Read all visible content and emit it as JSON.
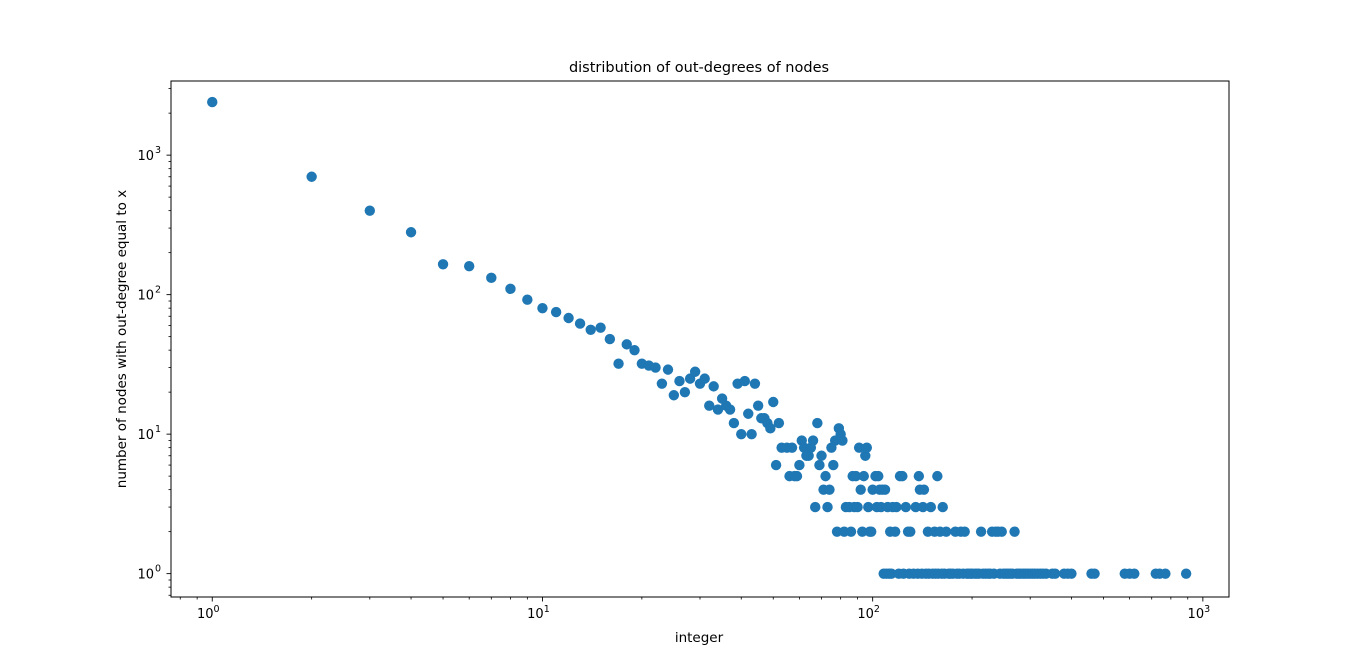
{
  "chart_data": {
    "type": "scatter",
    "title": "distribution of out-degrees of nodes",
    "xlabel": "integer",
    "ylabel": "number of nodes with out-degree equal to x",
    "xscale": "log",
    "yscale": "log",
    "xlim": [
      0.75,
      1200
    ],
    "ylim": [
      0.68,
      3400
    ],
    "grid": false,
    "marker_color": "#1f77b4",
    "x_ticks": [
      {
        "value": 1,
        "base": "10",
        "exp": "0"
      },
      {
        "value": 10,
        "base": "10",
        "exp": "1"
      },
      {
        "value": 100,
        "base": "10",
        "exp": "2"
      },
      {
        "value": 1000,
        "base": "10",
        "exp": "3"
      }
    ],
    "y_ticks": [
      {
        "value": 1,
        "base": "10",
        "exp": "0"
      },
      {
        "value": 10,
        "base": "10",
        "exp": "1"
      },
      {
        "value": 100,
        "base": "10",
        "exp": "2"
      },
      {
        "value": 1000,
        "base": "10",
        "exp": "3"
      }
    ],
    "points": [
      [
        1,
        2400
      ],
      [
        2,
        700
      ],
      [
        3,
        400
      ],
      [
        4,
        280
      ],
      [
        5,
        165
      ],
      [
        6,
        160
      ],
      [
        7,
        132
      ],
      [
        8,
        110
      ],
      [
        9,
        92
      ],
      [
        10,
        80
      ],
      [
        11,
        75
      ],
      [
        12,
        68
      ],
      [
        13,
        62
      ],
      [
        14,
        56
      ],
      [
        15,
        58
      ],
      [
        16,
        48
      ],
      [
        17,
        32
      ],
      [
        18,
        44
      ],
      [
        19,
        40
      ],
      [
        20,
        32
      ],
      [
        21,
        31
      ],
      [
        22,
        30
      ],
      [
        23,
        23
      ],
      [
        24,
        29
      ],
      [
        25,
        19
      ],
      [
        26,
        24
      ],
      [
        27,
        20
      ],
      [
        28,
        25
      ],
      [
        29,
        28
      ],
      [
        30,
        23
      ],
      [
        31,
        25
      ],
      [
        32,
        16
      ],
      [
        33,
        22
      ],
      [
        34,
        15
      ],
      [
        35,
        18
      ],
      [
        36,
        16
      ],
      [
        37,
        15
      ],
      [
        38,
        12
      ],
      [
        39,
        23
      ],
      [
        40,
        10
      ],
      [
        41,
        24
      ],
      [
        42,
        14
      ],
      [
        43,
        10
      ],
      [
        44,
        23
      ],
      [
        45,
        16
      ],
      [
        46,
        13
      ],
      [
        47,
        13
      ],
      [
        48,
        12
      ],
      [
        49,
        11
      ],
      [
        50,
        17
      ],
      [
        51,
        6
      ],
      [
        52,
        12
      ],
      [
        53,
        8
      ],
      [
        55,
        8
      ],
      [
        56,
        5
      ],
      [
        57,
        8
      ],
      [
        58,
        5
      ],
      [
        59,
        5
      ],
      [
        60,
        6
      ],
      [
        61,
        9
      ],
      [
        62,
        8
      ],
      [
        63,
        7
      ],
      [
        64,
        7
      ],
      [
        65,
        8
      ],
      [
        66,
        9
      ],
      [
        67,
        3
      ],
      [
        68,
        12
      ],
      [
        69,
        6
      ],
      [
        70,
        7
      ],
      [
        71,
        4
      ],
      [
        72,
        5
      ],
      [
        73,
        3
      ],
      [
        74,
        4
      ],
      [
        75,
        8
      ],
      [
        76,
        6
      ],
      [
        77,
        9
      ],
      [
        78,
        2
      ],
      [
        79,
        11
      ],
      [
        80,
        10
      ],
      [
        81,
        9
      ],
      [
        82,
        2
      ],
      [
        83,
        3
      ],
      [
        85,
        3
      ],
      [
        86,
        2
      ],
      [
        87,
        5
      ],
      [
        88,
        3
      ],
      [
        89,
        5
      ],
      [
        90,
        3
      ],
      [
        91,
        8
      ],
      [
        92,
        4
      ],
      [
        93,
        2
      ],
      [
        94,
        5
      ],
      [
        95,
        7
      ],
      [
        96,
        8
      ],
      [
        97,
        3
      ],
      [
        98,
        2
      ],
      [
        99,
        2
      ],
      [
        100,
        4
      ],
      [
        102,
        5
      ],
      [
        103,
        3
      ],
      [
        104,
        5
      ],
      [
        105,
        4
      ],
      [
        106,
        3
      ],
      [
        107,
        4
      ],
      [
        108,
        1
      ],
      [
        109,
        4
      ],
      [
        110,
        1
      ],
      [
        111,
        3
      ],
      [
        112,
        1
      ],
      [
        113,
        2
      ],
      [
        114,
        1
      ],
      [
        115,
        3
      ],
      [
        117,
        2
      ],
      [
        118,
        3
      ],
      [
        120,
        1
      ],
      [
        121,
        5
      ],
      [
        123,
        5
      ],
      [
        124,
        1
      ],
      [
        126,
        3
      ],
      [
        128,
        2
      ],
      [
        129,
        1
      ],
      [
        130,
        2
      ],
      [
        133,
        1
      ],
      [
        135,
        3
      ],
      [
        137,
        1
      ],
      [
        138,
        5
      ],
      [
        139,
        4
      ],
      [
        141,
        1
      ],
      [
        142,
        3
      ],
      [
        143,
        4
      ],
      [
        145,
        1
      ],
      [
        147,
        2
      ],
      [
        148,
        1
      ],
      [
        150,
        3
      ],
      [
        152,
        1
      ],
      [
        154,
        2
      ],
      [
        155,
        1
      ],
      [
        157,
        5
      ],
      [
        158,
        1
      ],
      [
        160,
        2
      ],
      [
        162,
        1
      ],
      [
        163,
        3
      ],
      [
        165,
        1
      ],
      [
        167,
        2
      ],
      [
        170,
        1
      ],
      [
        172,
        1
      ],
      [
        175,
        1
      ],
      [
        178,
        2
      ],
      [
        180,
        1
      ],
      [
        183,
        1
      ],
      [
        185,
        2
      ],
      [
        188,
        1
      ],
      [
        190,
        2
      ],
      [
        193,
        1
      ],
      [
        195,
        1
      ],
      [
        198,
        1
      ],
      [
        200,
        1
      ],
      [
        204,
        1
      ],
      [
        207,
        1
      ],
      [
        210,
        1
      ],
      [
        213,
        2
      ],
      [
        216,
        1
      ],
      [
        220,
        1
      ],
      [
        224,
        1
      ],
      [
        227,
        1
      ],
      [
        230,
        2
      ],
      [
        233,
        1
      ],
      [
        236,
        2
      ],
      [
        240,
        2
      ],
      [
        243,
        1
      ],
      [
        246,
        2
      ],
      [
        249,
        1
      ],
      [
        253,
        1
      ],
      [
        257,
        1
      ],
      [
        261,
        1
      ],
      [
        265,
        1
      ],
      [
        269,
        2
      ],
      [
        273,
        1
      ],
      [
        277,
        1
      ],
      [
        281,
        1
      ],
      [
        286,
        1
      ],
      [
        290,
        1
      ],
      [
        295,
        1
      ],
      [
        300,
        1
      ],
      [
        305,
        1
      ],
      [
        310,
        1
      ],
      [
        316,
        1
      ],
      [
        322,
        1
      ],
      [
        328,
        1
      ],
      [
        335,
        1
      ],
      [
        350,
        1
      ],
      [
        357,
        1
      ],
      [
        380,
        1
      ],
      [
        390,
        1
      ],
      [
        400,
        1
      ],
      [
        460,
        1
      ],
      [
        470,
        1
      ],
      [
        580,
        1
      ],
      [
        600,
        1
      ],
      [
        620,
        1
      ],
      [
        720,
        1
      ],
      [
        740,
        1
      ],
      [
        770,
        1
      ],
      [
        890,
        1
      ]
    ]
  }
}
